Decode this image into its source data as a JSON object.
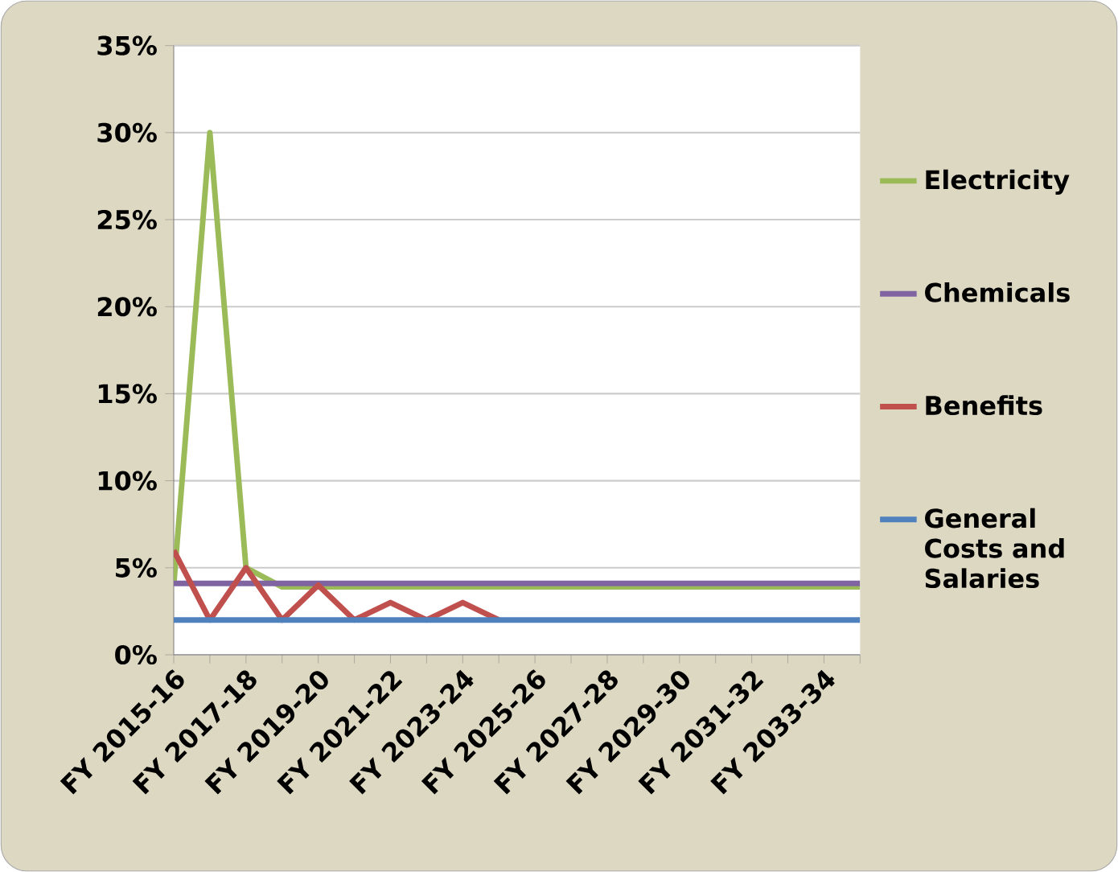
{
  "chart_data": {
    "type": "line",
    "categories": [
      "FY 2015-16",
      null,
      "FY 2017-18",
      null,
      "FY 2019-20",
      null,
      "FY 2021-22",
      null,
      "FY 2023-24",
      null,
      "FY 2025-26",
      null,
      "FY 2027-28",
      null,
      "FY 2029-30",
      null,
      "FY 2031-32",
      null,
      "FY 2033-34",
      null
    ],
    "series": [
      {
        "name": "Electricity",
        "color": "#9bbb59",
        "values": [
          4,
          30,
          5,
          3.9,
          3.9,
          3.9,
          3.9,
          3.9,
          3.9,
          3.9,
          3.9,
          3.9,
          3.9,
          3.9,
          3.9,
          3.9,
          3.9,
          3.9,
          3.9,
          3.9
        ]
      },
      {
        "name": "Chemicals",
        "color": "#8064a2",
        "values": [
          4.1,
          4.1,
          4.1,
          4.1,
          4.1,
          4.1,
          4.1,
          4.1,
          4.1,
          4.1,
          4.1,
          4.1,
          4.1,
          4.1,
          4.1,
          4.1,
          4.1,
          4.1,
          4.1,
          4.1
        ]
      },
      {
        "name": "Benefits",
        "color": "#c0504d",
        "values": [
          6,
          2,
          5,
          2,
          4,
          2,
          3,
          2,
          3,
          2,
          null,
          null,
          null,
          null,
          null,
          null,
          null,
          null,
          null,
          null
        ]
      },
      {
        "name": "General Costs and Salaries",
        "color": "#4f81bd",
        "values": [
          2,
          2,
          2,
          2,
          2,
          2,
          2,
          2,
          2,
          2,
          2,
          2,
          2,
          2,
          2,
          2,
          2,
          2,
          2,
          2
        ]
      }
    ],
    "ylim": [
      0,
      35
    ],
    "yticks": [
      {
        "value": 0,
        "label": "0%"
      },
      {
        "value": 5,
        "label": "5%"
      },
      {
        "value": 10,
        "label": "10%"
      },
      {
        "value": 15,
        "label": "15%"
      },
      {
        "value": 20,
        "label": "20%"
      },
      {
        "value": 25,
        "label": "25%"
      },
      {
        "value": 30,
        "label": "30%"
      },
      {
        "value": 35,
        "label": "35%"
      }
    ],
    "grid": "y",
    "legend": "right",
    "marker": "none",
    "line_style": "solid"
  }
}
